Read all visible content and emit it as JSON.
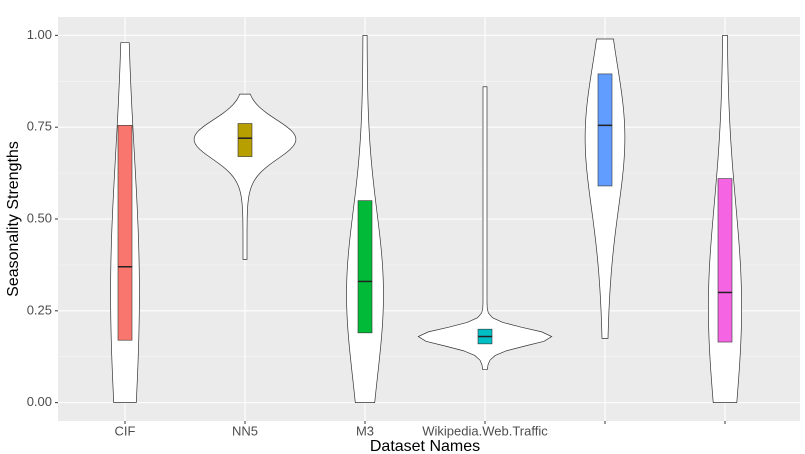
{
  "chart_data": {
    "type": "violin",
    "x_label": "Dataset Names",
    "y_label": "Seasonality Strengths",
    "categories": [
      "CIF",
      "NN5",
      "M3",
      "Wikipedia.Web.Traffic",
      null,
      null
    ],
    "series": [
      {
        "color": "#f8766d",
        "min": 0,
        "q1": 0.17,
        "median": 0.37,
        "q3": 0.755,
        "max": 0.98
      },
      {
        "color": "#b79f00",
        "min": 0.39,
        "q1": 0.67,
        "median": 0.72,
        "q3": 0.76,
        "max": 0.84
      },
      {
        "color": "#00ba38",
        "min": 0,
        "q1": 0.19,
        "median": 0.33,
        "q3": 0.55,
        "max": 1.0
      },
      {
        "color": "#00bfc4",
        "min": 0.09,
        "q1": 0.16,
        "median": 0.18,
        "q3": 0.2,
        "max": 0.86
      },
      {
        "color": "#619cff",
        "min": 0.175,
        "q1": 0.59,
        "median": 0.755,
        "q3": 0.895,
        "max": 0.99
      },
      {
        "color": "#f564e3",
        "min": 0,
        "q1": 0.165,
        "median": 0.3,
        "q3": 0.61,
        "max": 1.0
      }
    ],
    "ylim": [
      -0.05,
      1.05
    ],
    "yticks": [
      {
        "value": 0,
        "label": "0.00"
      },
      0.25,
      {
        "value": 0.5,
        "label": "0.50"
      },
      0.75,
      {
        "value": 1,
        "label": "1.00"
      }
    ],
    "grid": true
  }
}
